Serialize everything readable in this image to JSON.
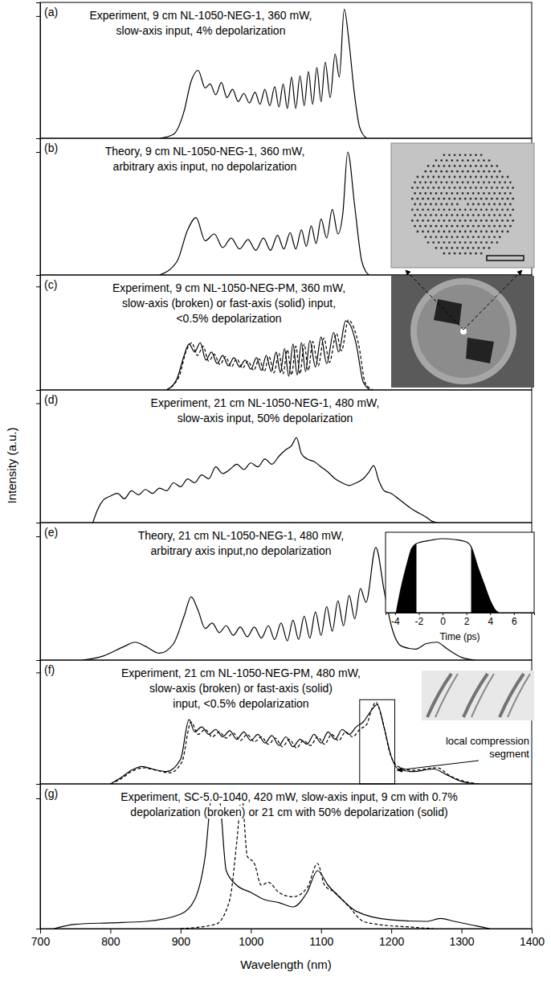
{
  "chart_data": [
    {
      "type": "line",
      "title": "(a)",
      "annotation": [
        "Experiment, 9 cm NL-1050-NEG-1, 360 mW,",
        "slow-axis input, 4% depolarization"
      ],
      "xlim": [
        700,
        1400
      ],
      "ylim": [
        0,
        1
      ],
      "yticks": [
        0.9
      ],
      "tick_labels": false,
      "series": [
        {
          "color": "#000000",
          "line_style": "solid",
          "x": [
            870,
            890,
            905,
            915,
            925,
            935,
            942,
            950,
            958,
            966,
            974,
            982,
            990,
            998,
            1006,
            1013,
            1020,
            1027,
            1034,
            1040,
            1046,
            1052,
            1058,
            1064,
            1070,
            1076,
            1082,
            1088,
            1094,
            1100,
            1106,
            1113,
            1120,
            1126,
            1133,
            1140,
            1147,
            1155,
            1165
          ],
          "values": [
            0,
            0.03,
            0.2,
            0.42,
            0.5,
            0.37,
            0.4,
            0.32,
            0.41,
            0.3,
            0.36,
            0.27,
            0.33,
            0.26,
            0.34,
            0.25,
            0.36,
            0.24,
            0.38,
            0.23,
            0.4,
            0.22,
            0.45,
            0.22,
            0.46,
            0.24,
            0.49,
            0.25,
            0.52,
            0.27,
            0.56,
            0.3,
            0.62,
            0.45,
            0.95,
            0.7,
            0.35,
            0.08,
            0
          ]
        }
      ]
    },
    {
      "type": "line",
      "title": "(b)",
      "annotation": [
        "Theory, 9 cm NL-1050-NEG-1, 360 mW,",
        "arbitrary axis input, no depolarization"
      ],
      "xlim": [
        700,
        1400
      ],
      "ylim": [
        0,
        1
      ],
      "yticks": [
        0.9
      ],
      "tick_labels": false,
      "series": [
        {
          "color": "#000000",
          "line_style": "solid",
          "x": [
            870,
            895,
            910,
            922,
            935,
            948,
            960,
            972,
            984,
            996,
            1007,
            1018,
            1028,
            1038,
            1047,
            1056,
            1064,
            1072,
            1079,
            1086,
            1093,
            1100,
            1108,
            1116,
            1124,
            1131,
            1138,
            1148,
            1158,
            1168
          ],
          "values": [
            0,
            0.1,
            0.33,
            0.42,
            0.25,
            0.3,
            0.2,
            0.27,
            0.19,
            0.26,
            0.18,
            0.27,
            0.18,
            0.29,
            0.19,
            0.31,
            0.19,
            0.33,
            0.21,
            0.36,
            0.23,
            0.41,
            0.27,
            0.48,
            0.3,
            0.45,
            0.9,
            0.5,
            0.1,
            0
          ]
        }
      ]
    },
    {
      "type": "line",
      "title": "(c)",
      "annotation": [
        "Experiment, 9 cm NL-1050-NEG-PM, 360 mW,",
        "slow-axis (broken) or fast-axis (solid) input,",
        "<0.5% depolarization"
      ],
      "xlim": [
        700,
        1400
      ],
      "ylim": [
        0,
        1
      ],
      "yticks": [
        0.9
      ],
      "tick_labels": false,
      "series": [
        {
          "color": "#000000",
          "line_style": "dashed",
          "x": [
            880,
            898,
            908,
            916,
            924,
            932,
            940,
            948,
            956,
            964,
            972,
            980,
            988,
            996,
            1004,
            1012,
            1019,
            1026,
            1033,
            1040,
            1046,
            1052,
            1058,
            1064,
            1070,
            1076,
            1082,
            1088,
            1096,
            1104,
            1112,
            1122,
            1129,
            1139,
            1146,
            1154,
            1163,
            1174
          ],
          "values": [
            0,
            0.12,
            0.34,
            0.41,
            0.3,
            0.38,
            0.25,
            0.31,
            0.22,
            0.29,
            0.2,
            0.27,
            0.19,
            0.25,
            0.17,
            0.27,
            0.16,
            0.29,
            0.15,
            0.32,
            0.14,
            0.35,
            0.13,
            0.38,
            0.14,
            0.4,
            0.17,
            0.42,
            0.21,
            0.45,
            0.24,
            0.49,
            0.34,
            0.61,
            0.55,
            0.38,
            0.06,
            0
          ]
        },
        {
          "color": "#000000",
          "line_style": "solid",
          "x": [
            880,
            895,
            905,
            912,
            920,
            928,
            936,
            944,
            952,
            960,
            968,
            976,
            984,
            992,
            1000,
            1008,
            1015,
            1022,
            1029,
            1036,
            1042,
            1048,
            1054,
            1060,
            1066,
            1072,
            1078,
            1084,
            1092,
            1100,
            1108,
            1118,
            1125,
            1135,
            1142,
            1150,
            1160,
            1170
          ],
          "values": [
            0,
            0.1,
            0.3,
            0.4,
            0.33,
            0.41,
            0.26,
            0.33,
            0.23,
            0.3,
            0.21,
            0.28,
            0.2,
            0.26,
            0.18,
            0.28,
            0.17,
            0.3,
            0.16,
            0.33,
            0.15,
            0.36,
            0.12,
            0.4,
            0.13,
            0.41,
            0.16,
            0.43,
            0.2,
            0.46,
            0.23,
            0.5,
            0.33,
            0.6,
            0.56,
            0.4,
            0.07,
            0
          ]
        }
      ]
    },
    {
      "type": "line",
      "title": "(d)",
      "ylabel": "Intensity (a.u.)",
      "annotation": [
        "Experiment, 21 cm NL-1050-NEG-1,  480 mW,",
        "slow-axis input, 50% depolarization"
      ],
      "xlim": [
        700,
        1400
      ],
      "ylim": [
        0,
        1
      ],
      "yticks": [
        0.9
      ],
      "tick_labels": false,
      "series": [
        {
          "color": "#000000",
          "line_style": "solid",
          "x": [
            775,
            782,
            790,
            800,
            810,
            820,
            830,
            840,
            850,
            860,
            870,
            880,
            890,
            900,
            910,
            920,
            930,
            940,
            950,
            960,
            970,
            980,
            990,
            1000,
            1010,
            1020,
            1030,
            1040,
            1050,
            1058,
            1065,
            1072,
            1080,
            1090,
            1100,
            1110,
            1120,
            1130,
            1140,
            1150,
            1160,
            1168,
            1175,
            1182,
            1190,
            1200,
            1210,
            1220,
            1230,
            1240,
            1250,
            1258,
            1265
          ],
          "values": [
            0,
            0.1,
            0.17,
            0.2,
            0.22,
            0.18,
            0.24,
            0.21,
            0.25,
            0.22,
            0.26,
            0.24,
            0.3,
            0.27,
            0.33,
            0.3,
            0.36,
            0.33,
            0.42,
            0.37,
            0.4,
            0.44,
            0.4,
            0.45,
            0.42,
            0.48,
            0.44,
            0.5,
            0.55,
            0.58,
            0.64,
            0.52,
            0.48,
            0.46,
            0.42,
            0.38,
            0.33,
            0.3,
            0.28,
            0.3,
            0.33,
            0.38,
            0.43,
            0.32,
            0.24,
            0.22,
            0.18,
            0.14,
            0.1,
            0.07,
            0.04,
            0.01,
            0
          ]
        }
      ]
    },
    {
      "type": "line",
      "title": "(e)",
      "annotation": [
        "Theory, 21 cm NL-1050-NEG-1, 480 mW,",
        "arbitrary axis input,no depolarization"
      ],
      "xlim": [
        700,
        1400
      ],
      "ylim": [
        0,
        1
      ],
      "yticks": [
        0.9
      ],
      "tick_labels": false,
      "series": [
        {
          "color": "#000000",
          "line_style": "solid",
          "x": [
            760,
            790,
            820,
            835,
            850,
            870,
            890,
            905,
            915,
            925,
            935,
            945,
            955,
            965,
            975,
            985,
            995,
            1005,
            1015,
            1025,
            1034,
            1043,
            1052,
            1060,
            1068,
            1076,
            1084,
            1092,
            1100,
            1108,
            1116,
            1124,
            1132,
            1140,
            1148,
            1156,
            1164,
            1178,
            1190,
            1200,
            1215,
            1235,
            1250,
            1265,
            1280,
            1300,
            1320
          ],
          "values": [
            0,
            0.03,
            0.1,
            0.13,
            0.1,
            0.05,
            0.12,
            0.32,
            0.46,
            0.36,
            0.23,
            0.27,
            0.2,
            0.25,
            0.18,
            0.24,
            0.17,
            0.24,
            0.16,
            0.25,
            0.15,
            0.27,
            0.14,
            0.29,
            0.15,
            0.32,
            0.16,
            0.35,
            0.18,
            0.39,
            0.21,
            0.43,
            0.25,
            0.47,
            0.3,
            0.52,
            0.42,
            0.82,
            0.5,
            0.25,
            0.1,
            0.08,
            0.12,
            0.13,
            0.08,
            0.02,
            0
          ]
        }
      ],
      "inset": {
        "type": "line",
        "xlabel": "Time (ps)",
        "xlim": [
          -4.8,
          7.7
        ],
        "ylim": [
          0,
          1
        ],
        "xticks": [
          -4,
          -2,
          0,
          2,
          4,
          6
        ],
        "tick_labels": "x",
        "x": [
          -3.9,
          -3.5,
          -3,
          -2.6,
          -2.2,
          -2,
          -1,
          0,
          1,
          2,
          2.4,
          3,
          3.5,
          4,
          4.4,
          4.7
        ],
        "series": [
          {
            "type": "line",
            "color": "#000000",
            "line_style": "solid",
            "values": [
              0,
              0.3,
              0.6,
              0.8,
              0.86,
              0.87,
              0.9,
              0.92,
              0.91,
              0.88,
              0.82,
              0.55,
              0.35,
              0.15,
              0.04,
              0
            ]
          },
          {
            "type": "area",
            "color": "#000000",
            "values": [
              0,
              0.3,
              0.6,
              0.8,
              0.86,
              null,
              null,
              null,
              null,
              null,
              0.82,
              0.55,
              0.35,
              0.15,
              0.04,
              0
            ]
          }
        ]
      }
    },
    {
      "type": "line",
      "title": "(f)",
      "annotation": [
        "Experiment, 21 cm NL-1050-NEG-PM, 480 mW,",
        "slow-axis (broken) or fast-axis (solid)",
        "input, <0.5% depolarization"
      ],
      "xlim": [
        700,
        1400
      ],
      "ylim": [
        0,
        1
      ],
      "yticks": [
        0.9
      ],
      "tick_labels": false,
      "box": {
        "x": [
          1155,
          1205
        ],
        "y": [
          0,
          0.68
        ],
        "label": [
          "local compression",
          "segment"
        ]
      },
      "series": [
        {
          "color": "#000000",
          "line_style": "dashed",
          "x": [
            800,
            815,
            830,
            848,
            865,
            885,
            902,
            915,
            925,
            935,
            945,
            955,
            965,
            975,
            985,
            995,
            1005,
            1015,
            1025,
            1035,
            1045,
            1055,
            1065,
            1075,
            1085,
            1095,
            1105,
            1115,
            1125,
            1135,
            1145,
            1155,
            1165,
            1172,
            1178,
            1188,
            1198,
            1210,
            1230,
            1265,
            1285,
            1305,
            1325
          ],
          "values": [
            0,
            0.04,
            0.1,
            0.13,
            0.11,
            0.09,
            0.18,
            0.5,
            0.4,
            0.44,
            0.38,
            0.42,
            0.37,
            0.41,
            0.35,
            0.4,
            0.34,
            0.38,
            0.32,
            0.37,
            0.3,
            0.36,
            0.29,
            0.35,
            0.31,
            0.38,
            0.32,
            0.4,
            0.35,
            0.42,
            0.38,
            0.44,
            0.48,
            0.6,
            0.66,
            0.5,
            0.25,
            0.14,
            0.11,
            0.13,
            0.06,
            0.02,
            0
          ]
        },
        {
          "color": "#000000",
          "line_style": "solid",
          "x": [
            800,
            815,
            830,
            845,
            860,
            880,
            900,
            912,
            920,
            930,
            940,
            950,
            960,
            970,
            980,
            990,
            1000,
            1010,
            1020,
            1030,
            1040,
            1050,
            1060,
            1070,
            1080,
            1090,
            1100,
            1110,
            1120,
            1130,
            1140,
            1150,
            1160,
            1170,
            1180,
            1190,
            1200,
            1210,
            1230,
            1260,
            1280,
            1300,
            1320
          ],
          "values": [
            0,
            0.05,
            0.11,
            0.14,
            0.12,
            0.1,
            0.2,
            0.52,
            0.42,
            0.46,
            0.4,
            0.44,
            0.38,
            0.43,
            0.36,
            0.42,
            0.35,
            0.4,
            0.33,
            0.39,
            0.31,
            0.38,
            0.3,
            0.36,
            0.32,
            0.4,
            0.33,
            0.42,
            0.36,
            0.44,
            0.4,
            0.46,
            0.5,
            0.58,
            0.64,
            0.45,
            0.22,
            0.12,
            0.1,
            0.12,
            0.07,
            0.02,
            0
          ]
        }
      ]
    },
    {
      "type": "line",
      "title": "(g)",
      "xlabel": "Wavelength (nm)",
      "annotation": [
        "Experiment, SC-5.0-1040, 420 mW, slow-axis input, 9 cm with 0.7%",
        "depolarization (broken) or 21 cm with 50% depolarization (solid)"
      ],
      "xlim": [
        700,
        1400
      ],
      "ylim": [
        0,
        1
      ],
      "yticks": [
        0.9
      ],
      "tick_labels": "x",
      "xticks": [
        700,
        800,
        900,
        1000,
        1100,
        1200,
        1300,
        1400
      ],
      "series": [
        {
          "color": "#000000",
          "line_style": "dashed",
          "x": [
            900,
            950,
            970,
            980,
            987,
            995,
            1005,
            1015,
            1025,
            1040,
            1060,
            1080,
            1095,
            1105,
            1120,
            1140,
            1160,
            1180,
            1230,
            1260
          ],
          "values": [
            0,
            0.03,
            0.2,
            0.6,
            0.92,
            0.5,
            0.45,
            0.3,
            0.32,
            0.25,
            0.22,
            0.28,
            0.45,
            0.3,
            0.25,
            0.15,
            0.05,
            0.03,
            0.01,
            0
          ]
        },
        {
          "color": "#000000",
          "line_style": "solid",
          "x": [
            720,
            750,
            800,
            850,
            900,
            920,
            935,
            945,
            955,
            965,
            980,
            1000,
            1020,
            1040,
            1060,
            1080,
            1095,
            1110,
            1130,
            1150,
            1200,
            1250,
            1270,
            1290,
            1320,
            1340
          ],
          "values": [
            0,
            0.03,
            0.04,
            0.05,
            0.1,
            0.2,
            0.5,
            0.93,
            0.9,
            0.4,
            0.3,
            0.25,
            0.2,
            0.18,
            0.15,
            0.25,
            0.4,
            0.3,
            0.2,
            0.12,
            0.06,
            0.05,
            0.07,
            0.05,
            0.02,
            0
          ]
        }
      ]
    }
  ]
}
